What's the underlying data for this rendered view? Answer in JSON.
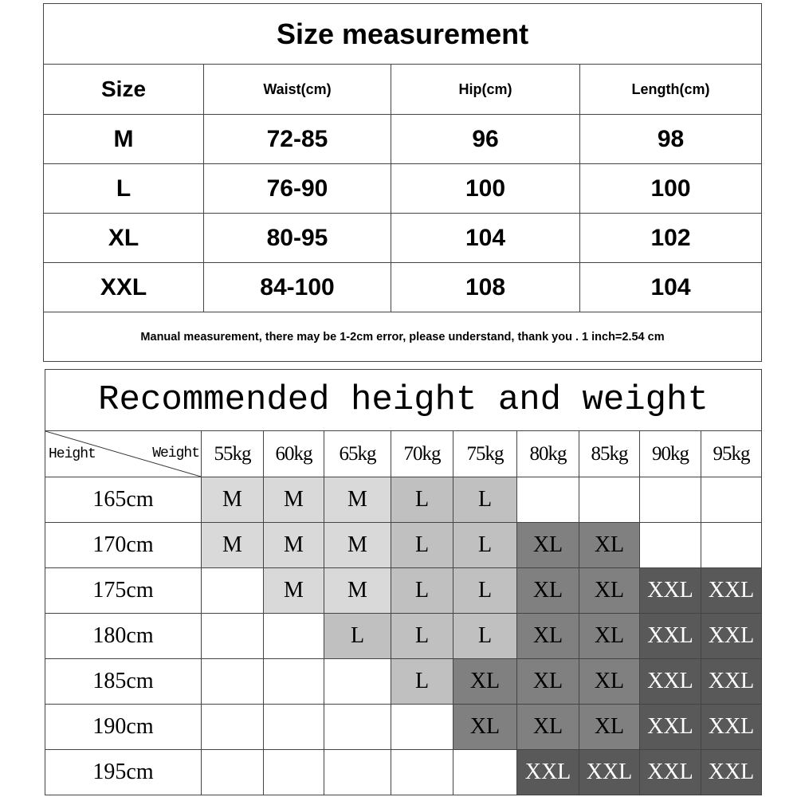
{
  "size_table": {
    "title": "Size measurement",
    "headers": [
      "Size",
      "Waist(cm)",
      "Hip(cm)",
      "Length(cm)"
    ],
    "rows": [
      [
        "M",
        "72-85",
        "96",
        "98"
      ],
      [
        "L",
        "76-90",
        "100",
        "100"
      ],
      [
        "XL",
        "80-95",
        "104",
        "102"
      ],
      [
        "XXL",
        "84-100",
        "108",
        "104"
      ]
    ],
    "note": "Manual measurement, there may be 1-2cm error, please understand, thank you .   1 inch=2.54 cm"
  },
  "recommend_table": {
    "title": "Recommended height and weight",
    "corner_left": "Height",
    "corner_right": "Weight",
    "weights": [
      "55kg",
      "60kg",
      "65kg",
      "70kg",
      "75kg",
      "80kg",
      "85kg",
      "90kg",
      "95kg"
    ],
    "rows": [
      {
        "height": "165cm",
        "sizes": [
          "M",
          "M",
          "M",
          "L",
          "L",
          "",
          "",
          "",
          ""
        ]
      },
      {
        "height": "170cm",
        "sizes": [
          "M",
          "M",
          "M",
          "L",
          "L",
          "XL",
          "XL",
          "",
          ""
        ]
      },
      {
        "height": "175cm",
        "sizes": [
          "",
          "M",
          "M",
          "L",
          "L",
          "XL",
          "XL",
          "XXL",
          "XXL"
        ]
      },
      {
        "height": "180cm",
        "sizes": [
          "",
          "",
          "L",
          "L",
          "L",
          "XL",
          "XL",
          "XXL",
          "XXL"
        ]
      },
      {
        "height": "185cm",
        "sizes": [
          "",
          "",
          "",
          "L",
          "XL",
          "XL",
          "XL",
          "XXL",
          "XXL"
        ]
      },
      {
        "height": "190cm",
        "sizes": [
          "",
          "",
          "",
          "",
          "XL",
          "XL",
          "XL",
          "XXL",
          "XXL"
        ]
      },
      {
        "height": "195cm",
        "sizes": [
          "",
          "",
          "",
          "",
          "",
          "XXL",
          "XXL",
          "XXL",
          "XXL"
        ]
      }
    ],
    "colors": {
      "M": "#d9d9d9",
      "L": "#c0c0c0",
      "XL": "#808080",
      "XXL": "#595959"
    }
  }
}
